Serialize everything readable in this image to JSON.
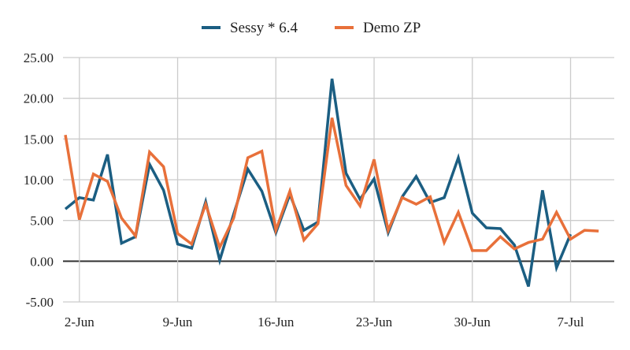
{
  "chart_data": {
    "type": "line",
    "title": "",
    "xlabel": "",
    "ylabel": "",
    "ylim": [
      -5,
      25
    ],
    "yticks": [
      "-5.00",
      "0.00",
      "5.00",
      "10.00",
      "15.00",
      "20.00",
      "25.00"
    ],
    "ytick_values": [
      -5,
      0,
      5,
      10,
      15,
      20,
      25
    ],
    "xticks": [
      "2-Jun",
      "9-Jun",
      "16-Jun",
      "23-Jun",
      "30-Jun",
      "7-Jul"
    ],
    "xtick_days": [
      1,
      8,
      15,
      22,
      29,
      36
    ],
    "x_start": "1-Jun",
    "x_days_count": 39,
    "grid": true,
    "legend": "top-center",
    "series": [
      {
        "name": "Sessy * 6.4",
        "color": "#1b5e82",
        "values": [
          6.4,
          7.8,
          7.5,
          13.1,
          2.2,
          3.0,
          11.9,
          8.7,
          2.1,
          1.6,
          7.3,
          0.1,
          5.8,
          11.3,
          8.6,
          3.5,
          8.2,
          3.8,
          4.8,
          22.4,
          10.8,
          7.6,
          10.1,
          3.5,
          7.9,
          10.4,
          7.2,
          7.8,
          12.7,
          5.9,
          4.1,
          4.0,
          2.0,
          -3.1,
          8.7,
          -0.8,
          3.3
        ]
      },
      {
        "name": "Demo ZP",
        "color": "#e8703a",
        "values": [
          15.5,
          5.1,
          10.7,
          9.8,
          5.3,
          3.1,
          13.4,
          11.6,
          3.4,
          2.1,
          7.0,
          1.7,
          5.3,
          12.7,
          13.5,
          3.8,
          8.6,
          2.6,
          4.6,
          17.6,
          9.3,
          6.8,
          12.5,
          3.8,
          7.8,
          7.0,
          7.9,
          2.3,
          6.0,
          1.3,
          1.3,
          3.0,
          1.5,
          2.3,
          2.7,
          6.0,
          2.7,
          3.8,
          3.7
        ]
      }
    ]
  }
}
